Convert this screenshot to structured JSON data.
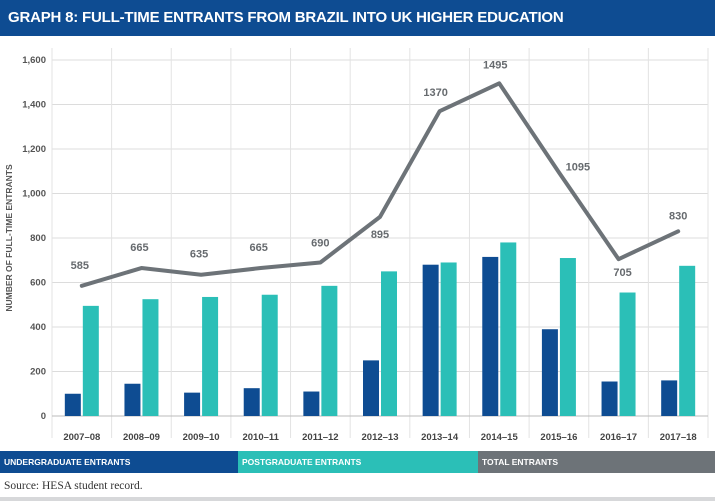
{
  "title": "GRAPH 8: FULL-TIME ENTRANTS FROM BRAZIL INTO UK HIGHER EDUCATION",
  "source": "Source: HESA student record.",
  "colors": {
    "undergraduate": "#0e4c92",
    "postgraduate": "#2bbfb7",
    "total": "#6d7378",
    "title_bg": "#0e4c92"
  },
  "legend": [
    {
      "label": "UNDERGRADUATE ENTRANTS",
      "color": "#0e4c92"
    },
    {
      "label": "POSTGRADUATE ENTRANTS",
      "color": "#2bbfb7"
    },
    {
      "label": "TOTAL ENTRANTS",
      "color": "#6d7378"
    }
  ],
  "chart_data": {
    "type": "bar",
    "title": "GRAPH 8: FULL-TIME ENTRANTS FROM BRAZIL INTO UK HIGHER EDUCATION",
    "xlabel": "",
    "ylabel": "NUMBER OF FULL-TIME ENTRANTS",
    "ylim": [
      0,
      1600
    ],
    "yticks": [
      0,
      200,
      400,
      600,
      800,
      1000,
      1200,
      1400,
      1600
    ],
    "ytick_labels": [
      "0",
      "200",
      "400",
      "600",
      "800",
      "1,000",
      "1,200",
      "1,400",
      "1,600"
    ],
    "grid": "horizontal",
    "legend_position": "bottom",
    "categories": [
      "2007–08",
      "2008–09",
      "2009–10",
      "2010–11",
      "2011–12",
      "2012–13",
      "2013–14",
      "2014–15",
      "2015–16",
      "2016–17",
      "2017–18"
    ],
    "series": [
      {
        "name": "UNDERGRADUATE ENTRANTS",
        "kind": "bar",
        "values": [
          100,
          145,
          105,
          125,
          110,
          250,
          680,
          715,
          390,
          155,
          160
        ]
      },
      {
        "name": "POSTGRADUATE ENTRANTS",
        "kind": "bar",
        "values": [
          495,
          525,
          535,
          545,
          585,
          650,
          690,
          780,
          710,
          555,
          675
        ]
      },
      {
        "name": "TOTAL ENTRANTS",
        "kind": "line",
        "values": [
          585,
          665,
          635,
          665,
          690,
          895,
          1370,
          1495,
          1095,
          705,
          830
        ],
        "labels": [
          "585",
          "665",
          "635",
          "665",
          "690",
          "895",
          "1370",
          "1495",
          "1095",
          "705",
          "830"
        ]
      }
    ]
  }
}
